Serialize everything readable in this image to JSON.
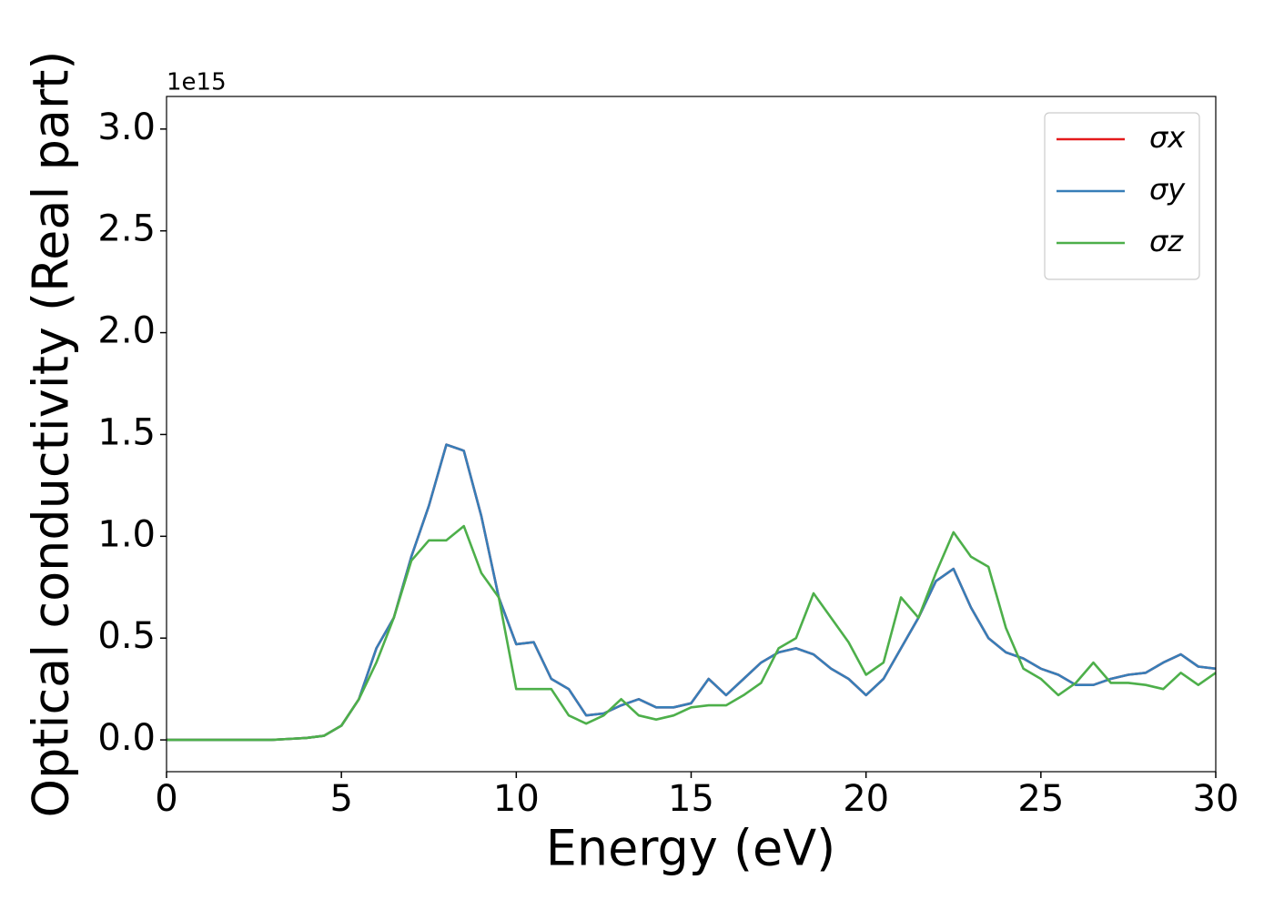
{
  "chart_data": {
    "type": "line",
    "xlabel": "Energy (eV)",
    "ylabel": "Optical conductivity (Real part)",
    "y_offset_label": "1e15",
    "x": [
      0,
      0.5,
      1,
      1.5,
      2,
      2.5,
      3,
      3.5,
      4,
      4.5,
      5,
      5.5,
      6,
      6.5,
      7,
      7.5,
      8,
      8.5,
      9,
      9.5,
      10,
      10.5,
      11,
      11.5,
      12,
      12.5,
      13,
      13.5,
      14,
      14.5,
      15,
      15.5,
      16,
      16.5,
      17,
      17.5,
      18,
      18.5,
      19,
      19.5,
      20,
      20.5,
      21,
      21.5,
      22,
      22.5,
      23,
      23.5,
      24,
      24.5,
      25,
      25.5,
      26,
      26.5,
      27,
      27.5,
      28,
      28.5,
      29,
      29.5,
      30
    ],
    "series": [
      {
        "name": "σx",
        "color": "#e41a1c",
        "values": [
          0,
          0,
          0,
          0,
          0,
          0,
          0,
          0.005,
          0.01,
          0.02,
          0.07,
          0.2,
          0.45,
          0.6,
          0.9,
          1.15,
          1.45,
          1.42,
          1.1,
          0.7,
          0.47,
          0.48,
          0.3,
          0.25,
          0.12,
          0.13,
          0.17,
          0.2,
          0.16,
          0.16,
          0.18,
          0.3,
          0.22,
          0.3,
          0.38,
          0.43,
          0.45,
          0.42,
          0.35,
          0.3,
          0.22,
          0.3,
          0.45,
          0.6,
          0.78,
          0.84,
          0.65,
          0.5,
          0.43,
          0.4,
          0.35,
          0.32,
          0.27,
          0.27,
          0.3,
          0.32,
          0.33,
          0.38,
          0.42,
          0.36,
          0.35
        ]
      },
      {
        "name": "σy",
        "color": "#377eb8",
        "values": [
          0,
          0,
          0,
          0,
          0,
          0,
          0,
          0.005,
          0.01,
          0.02,
          0.07,
          0.2,
          0.45,
          0.6,
          0.9,
          1.15,
          1.45,
          1.42,
          1.1,
          0.7,
          0.47,
          0.48,
          0.3,
          0.25,
          0.12,
          0.13,
          0.17,
          0.2,
          0.16,
          0.16,
          0.18,
          0.3,
          0.22,
          0.3,
          0.38,
          0.43,
          0.45,
          0.42,
          0.35,
          0.3,
          0.22,
          0.3,
          0.45,
          0.6,
          0.78,
          0.84,
          0.65,
          0.5,
          0.43,
          0.4,
          0.35,
          0.32,
          0.27,
          0.27,
          0.3,
          0.32,
          0.33,
          0.38,
          0.42,
          0.36,
          0.35
        ]
      },
      {
        "name": "σz",
        "color": "#4daf4a",
        "values": [
          0,
          0,
          0,
          0,
          0,
          0,
          0,
          0.005,
          0.01,
          0.02,
          0.07,
          0.2,
          0.38,
          0.6,
          0.88,
          0.98,
          0.98,
          1.05,
          0.82,
          0.7,
          0.25,
          0.25,
          0.25,
          0.12,
          0.08,
          0.12,
          0.2,
          0.12,
          0.1,
          0.12,
          0.16,
          0.17,
          0.17,
          0.22,
          0.28,
          0.45,
          0.5,
          0.72,
          0.6,
          0.48,
          0.32,
          0.38,
          0.7,
          0.6,
          0.82,
          1.02,
          0.9,
          0.85,
          0.55,
          0.35,
          0.3,
          0.22,
          0.28,
          0.38,
          0.28,
          0.28,
          0.27,
          0.25,
          0.33,
          0.27,
          0.33
        ]
      }
    ],
    "xlim": [
      0,
      30
    ],
    "xticks": [
      0,
      5,
      10,
      15,
      20,
      25,
      30
    ],
    "ylim": [
      -0.156,
      3.16
    ],
    "yticks": [
      {
        "value": 0,
        "label": "0.0"
      },
      {
        "value": 0.5,
        "label": "0.5"
      },
      {
        "value": 1,
        "label": "1.0"
      },
      {
        "value": 1.5,
        "label": "1.5"
      },
      {
        "value": 2,
        "label": "2.0"
      },
      {
        "value": 2.5,
        "label": "2.5"
      },
      {
        "value": 3,
        "label": "3.0"
      }
    ],
    "grid": false,
    "legend": "upper right"
  }
}
